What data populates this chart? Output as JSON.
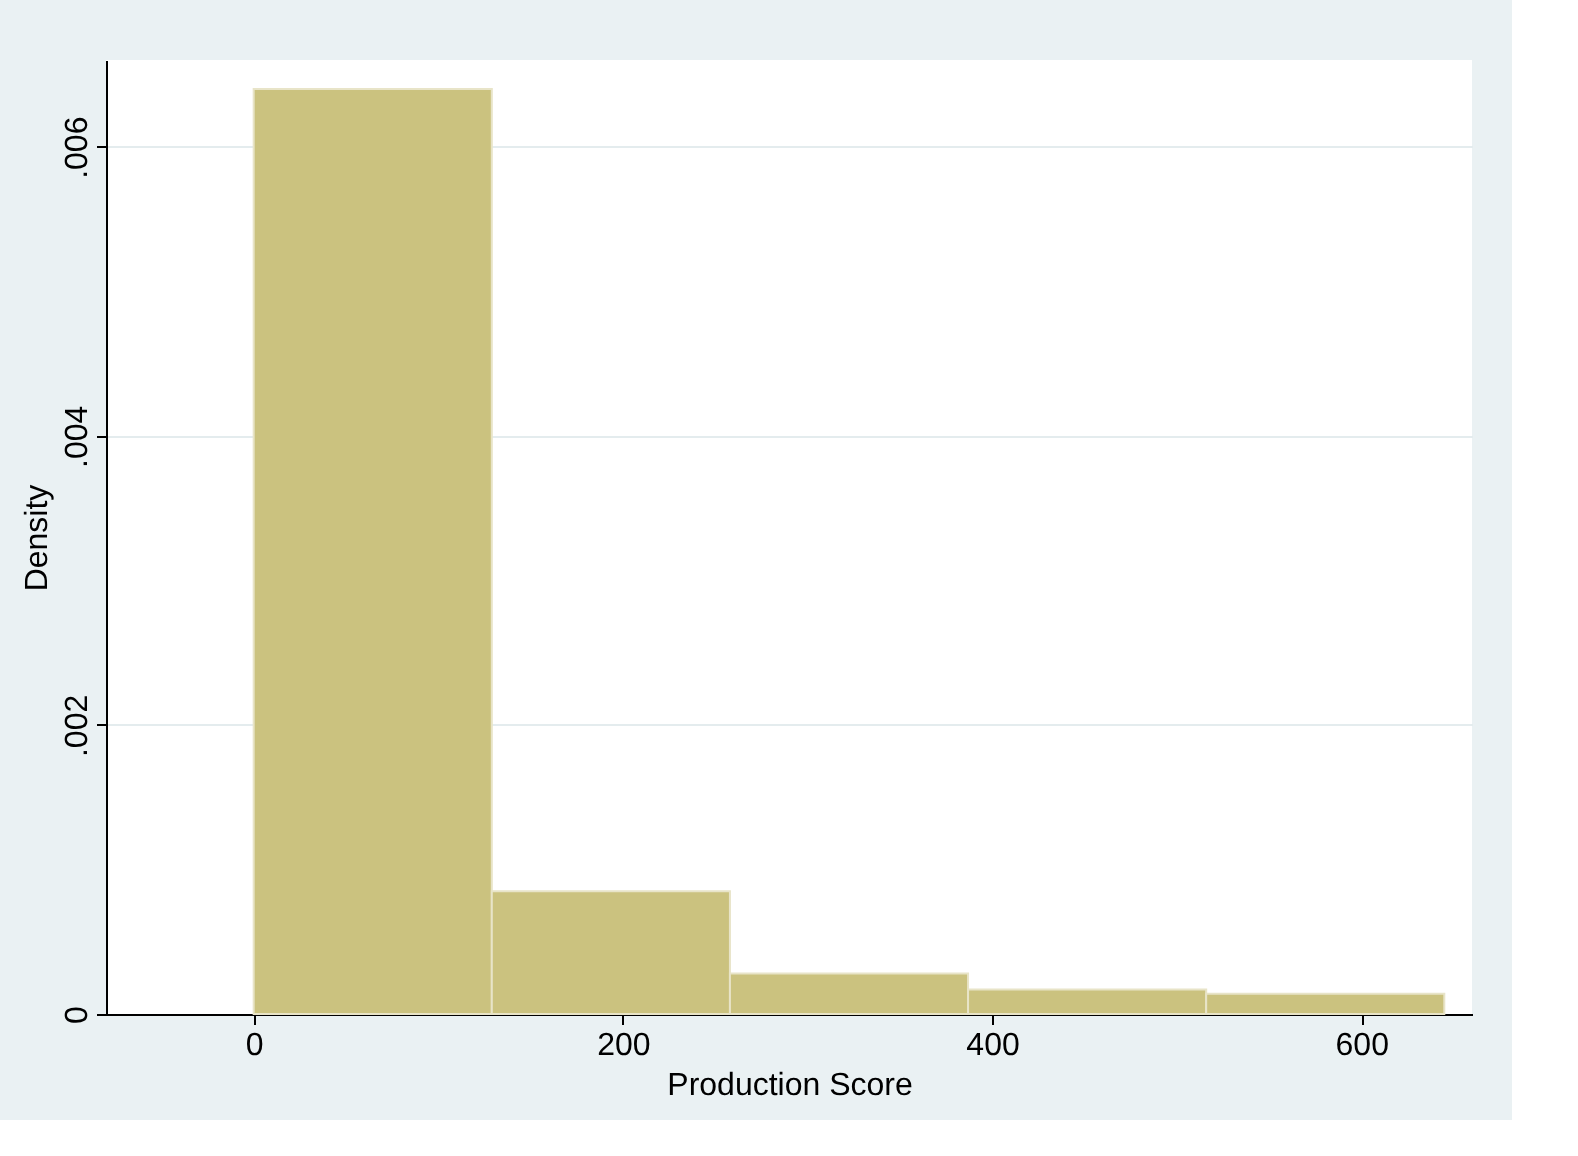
{
  "chart_data": {
    "type": "histogram",
    "xlabel": "Production Score",
    "ylabel": "Density",
    "bins": [
      0,
      129,
      258,
      387,
      516,
      645
    ],
    "values": [
      0.0064,
      0.00085,
      0.00028,
      0.00017,
      0.00014
    ],
    "color": "#cbc27f",
    "xlim": [
      -80,
      660
    ],
    "xticks": [
      0,
      200,
      400,
      600
    ],
    "ylim": [
      0,
      0.0066
    ],
    "yticks": [
      {
        "value": 0,
        "label": "0"
      },
      {
        "value": 0.002,
        "label": ".002"
      },
      {
        "value": 0.004,
        "label": ".004"
      },
      {
        "value": 0.006,
        "label": ".006"
      }
    ],
    "grid": "y"
  }
}
